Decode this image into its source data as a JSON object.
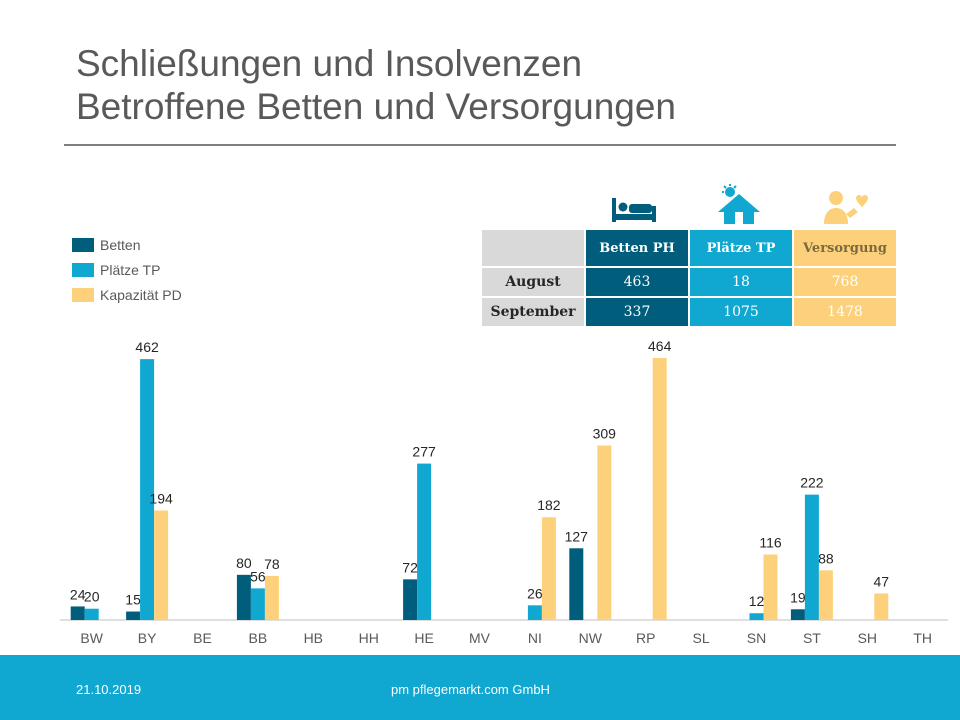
{
  "title": {
    "line1": "Schließungen und Insolvenzen",
    "line2": "Betroffene Betten und Versorgungen"
  },
  "colors": {
    "betten": "#005e7c",
    "plaetze": "#10a7d1",
    "kapazitaet": "#fdd17c",
    "footer": "#10a7d1"
  },
  "summary_table": {
    "columns": [
      {
        "label": "Betten PH",
        "icon": "bed-icon"
      },
      {
        "label": "Plätze TP",
        "icon": "house-sun-icon"
      },
      {
        "label": "Versorgung",
        "icon": "caregiver-icon"
      }
    ],
    "rows": [
      {
        "label": "August",
        "values": [
          "463",
          "18",
          "768"
        ]
      },
      {
        "label": "September",
        "values": [
          "337",
          "1075",
          "1478"
        ]
      }
    ]
  },
  "chart_data": {
    "type": "bar",
    "title": "",
    "xlabel": "",
    "ylabel": "",
    "ylim": [
      0,
      464
    ],
    "grid": false,
    "legend_position": "top-left",
    "categories": [
      "BW",
      "BY",
      "BE",
      "BB",
      "HB",
      "HH",
      "HE",
      "MV",
      "NI",
      "NW",
      "RP",
      "SL",
      "SN",
      "ST",
      "SH",
      "TH"
    ],
    "series": [
      {
        "name": "Betten",
        "values": [
          24,
          15,
          null,
          80,
          null,
          null,
          72,
          null,
          null,
          127,
          null,
          null,
          null,
          19,
          null,
          null
        ]
      },
      {
        "name": "Plätze TP",
        "values": [
          20,
          462,
          null,
          56,
          null,
          null,
          277,
          null,
          26,
          null,
          null,
          null,
          12,
          222,
          null,
          null
        ]
      },
      {
        "name": "Kapazität PD",
        "values": [
          null,
          194,
          null,
          78,
          null,
          null,
          null,
          null,
          182,
          309,
          464,
          null,
          116,
          88,
          47,
          null
        ]
      }
    ]
  },
  "footer": {
    "date": "21.10.2019",
    "company": "pm pflegemarkt.com GmbH"
  }
}
